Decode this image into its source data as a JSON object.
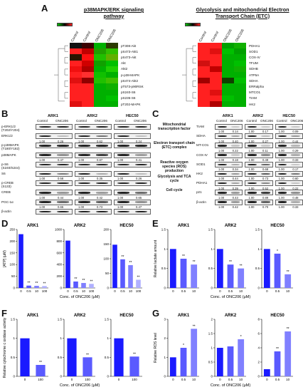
{
  "panels": {
    "A": "A",
    "B": "B",
    "C": "C",
    "D": "D",
    "E": "E",
    "F": "F",
    "G": "G"
  },
  "heatmap_left": {
    "title": "p38MAPK/ERK signaling pathway",
    "columns": [
      "Control",
      "Control",
      "ONC206",
      "ONC206"
    ],
    "rows": [
      "pT308-Akt",
      "pS473-Akt1",
      "pS473-Akt",
      "Akt",
      "Akt2",
      "p-p38-MAPK",
      "pS474-Akt2",
      "pT573-p90RSK",
      "pS240-S6",
      "pS235-S6",
      "pT202-MAPK"
    ],
    "colors": [
      [
        "#111111",
        "#3a0000",
        "#00b000",
        "#2b3a00"
      ],
      [
        "#ff2020",
        "#c00000",
        "#20a000",
        "#30c000"
      ],
      [
        "#2a1500",
        "#ff1010",
        "#20c000",
        "#60b000"
      ],
      [
        "#ff2020",
        "#d00000",
        "#10a000",
        "#00c000"
      ],
      [
        "#f01010",
        "#b00000",
        "#00b000",
        "#20d000"
      ],
      [
        "#ff2020",
        "#ff3030",
        "#10c000",
        "#00b000"
      ],
      [
        "#e01010",
        "#900000",
        "#20c000",
        "#40c000"
      ],
      [
        "#ff2020",
        "#ff2020",
        "#00b000",
        "#10b000"
      ],
      [
        "#ff2020",
        "#ff2020",
        "#00b000",
        "#00b000"
      ],
      [
        "#ff2020",
        "#ff2020",
        "#00b000",
        "#00c000"
      ],
      [
        "#e01010",
        "#ff2020",
        "#00b000",
        "#00b000"
      ]
    ]
  },
  "heatmap_right": {
    "title": "Glycolysis and mitochondrial Electron Transport Chain (ETC)",
    "columns": [
      "Control",
      "Control",
      "ONC206",
      "ONC206"
    ],
    "rows": [
      "PDHA1",
      "SOD1",
      "COX-IV",
      "TFUM",
      "SDHB",
      "ATP5A",
      "SDHA",
      "ERRalpha",
      "MTCO1",
      "TIAM",
      "HK2"
    ],
    "colors": [
      [
        "#ff2020",
        "#ff2020",
        "#00a000",
        "#10b000"
      ],
      [
        "#ff2020",
        "#e01010",
        "#00c000",
        "#00a000"
      ],
      [
        "#ff2020",
        "#ff2020",
        "#00b000",
        "#00b000"
      ],
      [
        "#d01010",
        "#ff2020",
        "#00b000",
        "#00c000"
      ],
      [
        "#ff2020",
        "#c00000",
        "#00b000",
        "#10b000"
      ],
      [
        "#ff2020",
        "#ff2020",
        "#00b000",
        "#00b000"
      ],
      [
        "#a00000",
        "#ff2020",
        "#104000",
        "#00c000"
      ],
      [
        "#ff2020",
        "#ff2020",
        "#00b000",
        "#00b000"
      ],
      [
        "#ff2020",
        "#e01010",
        "#00b000",
        "#00b000"
      ],
      [
        "#ff2020",
        "#ff2020",
        "#00c000",
        "#00b000"
      ],
      [
        "#ff2020",
        "#b00000",
        "#00b000",
        "#00b000"
      ]
    ]
  },
  "blot_B": {
    "groups": [
      "ARK1",
      "ARK2",
      "HEC50"
    ],
    "lanes": [
      "Control",
      "ONC206"
    ],
    "rows": [
      {
        "label": "p-ERK1/2\n(T202/Y204)",
        "nums": [
          "",
          "",
          "",
          "",
          "",
          ""
        ]
      },
      {
        "label": "ERK1/2",
        "nums": [
          "1.00",
          "0.26",
          "1.00",
          "0.62",
          "1.00",
          "0.24"
        ]
      },
      {
        "label": "p-p38MAPK\n(T180/Y182)",
        "nums": [
          "",
          "",
          "",
          "",
          "",
          ""
        ]
      },
      {
        "label": "p38MAPK",
        "nums": [
          "1.00",
          "0.47",
          "1.00",
          "0.87",
          "1.00",
          "0.41"
        ]
      },
      {
        "label": "p-S6\n(S240/S244)",
        "nums": [
          "",
          "",
          "",
          "",
          "",
          ""
        ]
      },
      {
        "label": "S6",
        "nums": [
          "1.00",
          "0.58",
          "1.00",
          "0.35",
          "1.00",
          "0.26"
        ]
      },
      {
        "label": "p-CREB\n(S133)",
        "nums": [
          "",
          "",
          "",
          "",
          "",
          ""
        ]
      },
      {
        "label": "CREB",
        "nums": [
          "1.00",
          "0.44",
          "1.00",
          "0.42",
          "1.00",
          "0.65"
        ]
      },
      {
        "label": "PGC-1α",
        "nums": [
          "1.00",
          "0.65",
          "1.00",
          "0.73",
          "1.00",
          "0.47"
        ]
      },
      {
        "label": "β-actin",
        "nums": [
          "",
          "",
          "",
          "",
          "",
          ""
        ]
      }
    ]
  },
  "blot_C": {
    "groups": [
      "ARK1",
      "ARK2",
      "HEC50"
    ],
    "lanes": [
      "Control",
      "ONC206"
    ],
    "rows": [
      {
        "label": "TIAM",
        "nums": [
          "1.00",
          "0.14",
          "1.00",
          "0.17",
          "1.00",
          "0.09"
        ]
      },
      {
        "label": "SDHA",
        "nums": [
          "1.00",
          "0.40",
          "1.00",
          "0.27",
          "1.00",
          "0.44"
        ]
      },
      {
        "label": "MT-CO1",
        "nums": [
          "1.00",
          "0.22",
          "1.00",
          "0.11",
          "1.00",
          "0.29"
        ]
      },
      {
        "label": "COX-IV",
        "nums": [
          "1.00",
          "0.18",
          "1.00",
          "0.49",
          "1.00",
          "0.33"
        ]
      },
      {
        "label": "SOD1",
        "nums": [
          "1.00",
          "0.34",
          "1.00",
          "0.68",
          "1.00",
          "0.17"
        ]
      },
      {
        "label": "HK2",
        "nums": [
          "1.00",
          "0.44",
          "1.00",
          "0.73",
          "1.00",
          "0.60"
        ]
      },
      {
        "label": "PDHA1",
        "nums": [
          "1.00",
          "0.39",
          "1.00",
          "0.52",
          "1.00",
          "0.22"
        ]
      },
      {
        "label": "p21",
        "nums": [
          "1.00",
          "0.43",
          "1.00",
          "0.89",
          "1.00",
          "0.48"
        ]
      },
      {
        "label": "β-actin",
        "nums": [
          "1.00",
          "0.42",
          "1.00",
          "0.70",
          "1.00",
          "0.33"
        ]
      }
    ],
    "sections": [
      "Mitochondrial transcription factor",
      "Electron transport chain (ETC) complex",
      "Reactive oxygen species (ROS) production",
      "Glycolysis and TCA cycle",
      "Cell cycle"
    ]
  },
  "chart_data": [
    {
      "panel": "D",
      "type": "bar",
      "title": "ARK1",
      "ylabel": "[ATP] (μM)",
      "xlabel": "",
      "categories": [
        "0",
        "0.5",
        "10",
        "100"
      ],
      "values": [
        230,
        10,
        9,
        8
      ],
      "ylim": [
        0,
        250
      ],
      "yticks": [
        0,
        50,
        100,
        150,
        200,
        250
      ],
      "sig": [
        "",
        "**",
        "**",
        "**"
      ]
    },
    {
      "panel": "D",
      "type": "bar",
      "title": "ARK2",
      "ylabel": "",
      "xlabel": "Conc. of ONC206 (μM)",
      "categories": [
        "0",
        "0.5",
        "10",
        "100"
      ],
      "values": [
        810,
        110,
        85,
        70
      ],
      "ylim": [
        0,
        1000
      ],
      "yticks": [
        0,
        200,
        400,
        600,
        800,
        1000
      ],
      "sig": [
        "",
        "**",
        "**",
        "**"
      ]
    },
    {
      "panel": "D",
      "type": "bar",
      "title": "HEC50",
      "ylabel": "",
      "xlabel": "",
      "categories": [
        "0",
        "0.5",
        "10",
        "100"
      ],
      "values": [
        148,
        98,
        78,
        28
      ],
      "ylim": [
        0,
        200
      ],
      "yticks": [
        0,
        50,
        100,
        150,
        200
      ],
      "sig": [
        "",
        "**",
        "**",
        "**"
      ]
    },
    {
      "panel": "E",
      "type": "bar",
      "title": "ARK1",
      "ylabel": "Relative lactate amount",
      "xlabel": "",
      "categories": [
        "0",
        "0.5",
        "10"
      ],
      "values": [
        1.0,
        0.75,
        0.6
      ],
      "ylim": [
        0,
        1.5
      ],
      "yticks": [
        0,
        0.5,
        1.0,
        1.5
      ],
      "sig": [
        "",
        "**",
        "**"
      ]
    },
    {
      "panel": "E",
      "type": "bar",
      "title": "ARK2",
      "ylabel": "",
      "xlabel": "Conc. of ONC206 (μM)",
      "categories": [
        "0",
        "0.5",
        "10"
      ],
      "values": [
        1.0,
        0.6,
        0.5
      ],
      "ylim": [
        0,
        1.5
      ],
      "yticks": [
        0,
        0.5,
        1.0,
        1.5
      ],
      "sig": [
        "",
        "**",
        "**"
      ]
    },
    {
      "panel": "E",
      "type": "bar",
      "title": "HEC50",
      "ylabel": "",
      "xlabel": "",
      "categories": [
        "0",
        "0.5",
        "10"
      ],
      "values": [
        1.0,
        0.88,
        0.35
      ],
      "ylim": [
        0,
        1.5
      ],
      "yticks": [
        0,
        0.5,
        1.0,
        1.5
      ],
      "sig": [
        "",
        "*",
        "**"
      ]
    },
    {
      "panel": "F",
      "type": "bar",
      "title": "ARK1",
      "ylabel": "Relative cytochrome c oxidase activity",
      "xlabel": "",
      "categories": [
        "0",
        "100"
      ],
      "values": [
        1.0,
        0.3
      ],
      "ylim": [
        0,
        1.5
      ],
      "yticks": [
        0,
        0.5,
        1.0,
        1.5
      ],
      "sig": [
        "",
        "**"
      ]
    },
    {
      "panel": "F",
      "type": "bar",
      "title": "ARK2",
      "ylabel": "",
      "xlabel": "Conc. of ONC206 (μM)",
      "categories": [
        "0",
        "100"
      ],
      "values": [
        1.0,
        0.5
      ],
      "ylim": [
        0,
        1.5
      ],
      "yticks": [
        0,
        0.5,
        1.0,
        1.5
      ],
      "sig": [
        "",
        "**"
      ]
    },
    {
      "panel": "F",
      "type": "bar",
      "title": "HEC50",
      "ylabel": "",
      "xlabel": "",
      "categories": [
        "0",
        "100"
      ],
      "values": [
        1.0,
        0.52
      ],
      "ylim": [
        0,
        1.5
      ],
      "yticks": [
        0,
        0.5,
        1.0,
        1.5
      ],
      "sig": [
        "",
        "**"
      ]
    },
    {
      "panel": "G",
      "type": "bar",
      "title": "ARK1",
      "ylabel": "Relative ROS level",
      "xlabel": "",
      "categories": [
        "0",
        "0.5",
        "10"
      ],
      "values": [
        1.0,
        1.5,
        2.5
      ],
      "ylim": [
        0,
        3
      ],
      "yticks": [
        0,
        1,
        2,
        3
      ],
      "sig": [
        "",
        "*",
        "**"
      ]
    },
    {
      "panel": "G",
      "type": "bar",
      "title": "ARK2",
      "ylabel": "",
      "xlabel": "Conc. of ONC206 (μM)",
      "categories": [
        "0",
        "0.5",
        "10"
      ],
      "values": [
        1.0,
        1.05,
        1.3
      ],
      "ylim": [
        0,
        2
      ],
      "yticks": [
        0,
        0.5,
        1.0,
        1.5,
        2.0
      ],
      "sig": [
        "",
        "",
        "*"
      ]
    },
    {
      "panel": "G",
      "type": "bar",
      "title": "HEC50",
      "ylabel": "",
      "xlabel": "",
      "categories": [
        "0",
        "0.5",
        "10"
      ],
      "values": [
        1.0,
        3.5,
        6.3
      ],
      "ylim": [
        0,
        8
      ],
      "yticks": [
        0,
        2,
        4,
        6,
        8
      ],
      "sig": [
        "",
        "**",
        "**"
      ]
    }
  ]
}
